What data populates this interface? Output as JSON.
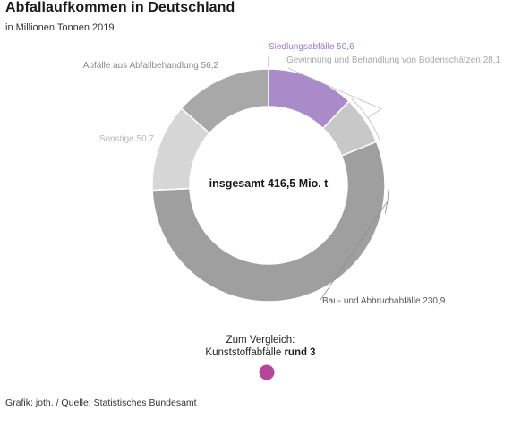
{
  "header": {
    "title": "Abfallaufkommen in Deutschland",
    "subtitle": "in Millionen Tonnen 2019"
  },
  "chart_data": {
    "type": "pie",
    "variant": "donut",
    "categories": [
      "Siedlungsabfälle",
      "Gewinnung und Behandlung von Bodenschätzen",
      "Bau- und Abbruchabfälle",
      "Sonstige",
      "Abfälle aus Abfallbehandlung"
    ],
    "values": [
      50.6,
      28.1,
      230.9,
      50.7,
      56.2
    ],
    "labels": [
      "Siedlungsabfälle 50,6",
      "Gewinnung und Behandlung von Bodenschätzen 28,1",
      "Bau- und Abbruchabfälle 230,9",
      "Sonstige 50,7",
      "Abfälle aus Abfallbehandlung 56,2"
    ],
    "colors": [
      "#a98bc9",
      "#c8c8c8",
      "#9f9f9f",
      "#d6d6d6",
      "#a8a8a8"
    ],
    "label_colors": [
      "#9b7bc2",
      "#a9a9a9",
      "#555555",
      "#b8b8b8",
      "#8a8a8a"
    ],
    "center_label": "insgesamt 416,5 Mio. t",
    "legend": "none"
  },
  "comparison": {
    "line1": "Zum Vergleich:",
    "line2_prefix": "Kunststoffabfälle ",
    "line2_bold": "rund 3",
    "dot_color": "#b4479a",
    "value": 3
  },
  "footer": {
    "credit": "Grafik: joth. / Quelle: Statistisches Bundesamt"
  }
}
